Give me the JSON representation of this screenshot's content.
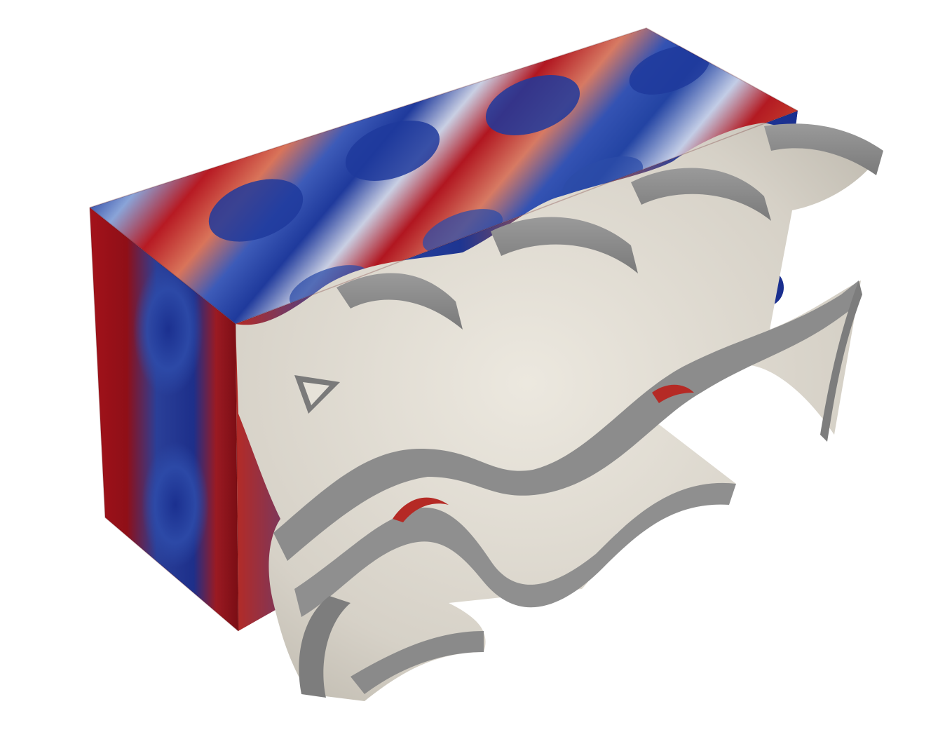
{
  "viewport": {
    "background": "#ffffff",
    "render_kind": "3d-gyroid-lattice-cutaway"
  },
  "colormap": {
    "name": "cool-to-warm",
    "low": "#1a2f8f",
    "mid": "#dcdcdc",
    "high": "#a8111b"
  },
  "surface_colors": {
    "lattice_face": "#ddd9cf",
    "lattice_edge": "#8a8a8a",
    "lattice_shadow": "#b7b2a8"
  }
}
